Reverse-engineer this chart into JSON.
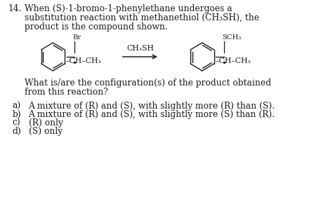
{
  "title_num": "14.",
  "line1": "When (S)-1-bromo-1-phenylethane undergoes a",
  "line2": "substitution reaction with methanethiol (CH₃SH), the",
  "line3": "product is the compound shown.",
  "reagent_label": "CH₃SH",
  "question_line1": "What is/are the configuration(s) of the product obtained",
  "question_line2": "from this reaction?",
  "choice_a": "a)    A mixture of (R) and (S), with slightly more (R) than (S).",
  "choice_b": "b)    A mixture of (R) and (S), with slightly more (S) than (R).",
  "choice_c": "c)    (R) only",
  "choice_d": "d)    (S) only",
  "bg_color": "#ffffff",
  "text_color": "#1a1a1a",
  "font_size": 8.8,
  "chem_font": 7.8,
  "label_font": 7.2
}
